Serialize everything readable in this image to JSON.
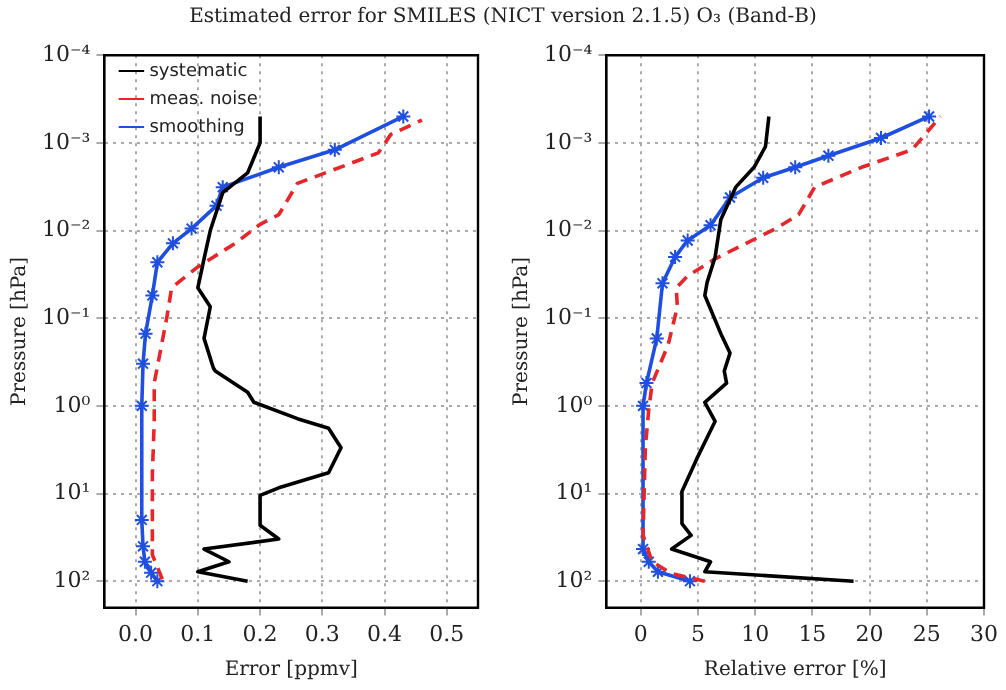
{
  "chart_data": [
    {
      "type": "line",
      "title": "Estimated error for SMILES (NICT version 2.1.5) O₃ (Band-B)",
      "xlabel": "Error [ppmv]",
      "ylabel": "Pressure [hPa]",
      "log": "y",
      "grid": true,
      "legend": "top left",
      "xlim": [
        -0.05,
        0.55
      ],
      "xticks": [
        {
          "value": 0,
          "label": "0.0"
        },
        0.1,
        0.2,
        0.3,
        0.4,
        0.5
      ],
      "ylim": [
        200,
        0.0001
      ],
      "yticks": [
        {
          "value": 100,
          "label": "10²"
        },
        {
          "value": 10,
          "label": "10¹"
        },
        {
          "value": 1,
          "label": "10⁰"
        },
        {
          "value": 0.1,
          "label": "10⁻¹"
        },
        {
          "value": 0.01,
          "label": "10⁻²"
        },
        {
          "value": 0.001,
          "label": "10⁻³"
        },
        {
          "value": 0.0001,
          "label": "10⁻⁴"
        }
      ],
      "series": [
        {
          "name": "systematic",
          "color": "#000000",
          "line_style": "solid",
          "marker": "none",
          "x": [
            0.18,
            0.1,
            0.15,
            0.11,
            0.23,
            0.2,
            0.2,
            0.23,
            0.31,
            0.33,
            0.31,
            0.26,
            0.19,
            0.18,
            0.128,
            0.125,
            0.11,
            0.12,
            0.1,
            0.11,
            0.12,
            0.14,
            0.18,
            0.2,
            0.2
          ],
          "values": [
            100,
            78,
            60,
            43,
            33,
            23,
            10.5,
            8.6,
            5.8,
            3,
            1.8,
            1.4,
            0.91,
            0.7,
            0.4,
            0.37,
            0.17,
            0.074,
            0.045,
            0.021,
            0.01,
            0.0037,
            0.0022,
            0.001,
            0.0005
          ]
        },
        {
          "name": "meas. noise",
          "color": "#e8262a",
          "line_style": "dashed",
          "marker": "none",
          "x": [
            0.043,
            0.027,
            0.027,
            0.03,
            0.03,
            0.05,
            0.058,
            0.1,
            0.16,
            0.2,
            0.23,
            0.26,
            0.39,
            0.41,
            0.46
          ],
          "values": [
            95,
            50,
            6,
            1.5,
            0.55,
            0.1,
            0.045,
            0.026,
            0.014,
            0.0085,
            0.0066,
            0.0029,
            0.0013,
            0.0008,
            0.00055
          ]
        },
        {
          "name": "smoothing",
          "color": "#1f4fe0",
          "line_style": "solid",
          "marker": "cross",
          "x": [
            0.035,
            0.025,
            0.015,
            0.012,
            0.01,
            0.01,
            0.012,
            0.016,
            0.027,
            0.035,
            0.06,
            0.09,
            0.13,
            0.14,
            0.23,
            0.32,
            0.43
          ],
          "values": [
            100,
            80,
            60,
            40,
            20,
            1,
            0.33,
            0.15,
            0.055,
            0.023,
            0.014,
            0.0095,
            0.0052,
            0.0032,
            0.0019,
            0.0012,
            0.0005
          ]
        }
      ]
    },
    {
      "type": "line",
      "xlabel": "Relative error [%]",
      "ylabel": "Pressure [hPa]",
      "log": "y",
      "grid": true,
      "xlim": [
        -3,
        30
      ],
      "xticks": [
        0,
        5,
        10,
        15,
        20,
        25,
        30
      ],
      "ylim": [
        200,
        0.0001
      ],
      "yticks": [
        {
          "value": 100,
          "label": "10²"
        },
        {
          "value": 10,
          "label": "10¹"
        },
        {
          "value": 1,
          "label": "10⁰"
        },
        {
          "value": 0.1,
          "label": "10⁻¹"
        },
        {
          "value": 0.01,
          "label": "10⁻²"
        },
        {
          "value": 0.001,
          "label": "10⁻³"
        },
        {
          "value": 0.0001,
          "label": "10⁻⁴"
        }
      ],
      "series": [
        {
          "color": "#000000",
          "line_style": "solid",
          "marker": "none",
          "x": [
            18.6,
            5.6,
            6.1,
            2.7,
            4.4,
            3.6,
            3.6,
            4.9,
            6.5,
            5.6,
            7.5,
            7.3,
            7.8,
            7.0,
            5.6,
            5.8,
            6.5,
            7.0,
            8.3,
            9.9,
            10.9,
            11.2
          ],
          "values": [
            100,
            78,
            60,
            43,
            30,
            22,
            9.5,
            4,
            1.5,
            0.91,
            0.55,
            0.4,
            0.25,
            0.15,
            0.055,
            0.039,
            0.02,
            0.0075,
            0.0032,
            0.0019,
            0.0011,
            0.0005
          ]
        },
        {
          "color": "#e8262a",
          "line_style": "dashed",
          "marker": "none",
          "x": [
            5.6,
            2.7,
            1.0,
            0.2,
            0.4,
            0.7,
            1.0,
            2.4,
            3.2,
            3.1,
            4.1,
            6.5,
            11.8,
            13.8,
            15.2,
            19.3,
            23.7,
            26.2
          ],
          "values": [
            100,
            82,
            60,
            30,
            3,
            1.1,
            0.55,
            0.2,
            0.074,
            0.045,
            0.033,
            0.021,
            0.0095,
            0.0066,
            0.0032,
            0.0019,
            0.0012,
            0.0005
          ]
        },
        {
          "color": "#1f4fe0",
          "line_style": "solid",
          "marker": "cross",
          "x": [
            4.3,
            1.5,
            0.7,
            0.2,
            0.2,
            0.5,
            1.4,
            1.9,
            3,
            4.1,
            6.1,
            7.8,
            10.7,
            13.5,
            16.4,
            21,
            25.2
          ],
          "values": [
            100,
            78,
            60,
            43,
            1,
            0.55,
            0.17,
            0.04,
            0.02,
            0.013,
            0.0087,
            0.0042,
            0.0025,
            0.0019,
            0.0014,
            0.00088,
            0.0005
          ]
        }
      ]
    }
  ]
}
